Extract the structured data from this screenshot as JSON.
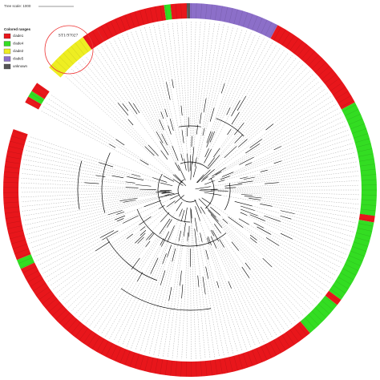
{
  "header": {
    "tree_scale": "Tree scale: 1000"
  },
  "legend": {
    "title": "Colored ranges",
    "items": [
      {
        "label": "clade1",
        "color": "#e8161b"
      },
      {
        "label": "clade4",
        "color": "#33dd22"
      },
      {
        "label": "clade2",
        "color": "#eeee22"
      },
      {
        "label": "clade5",
        "color": "#8c6fc9"
      },
      {
        "label": "unknown",
        "color": "#555555"
      }
    ]
  },
  "annotation": "ST1/97027"
}
